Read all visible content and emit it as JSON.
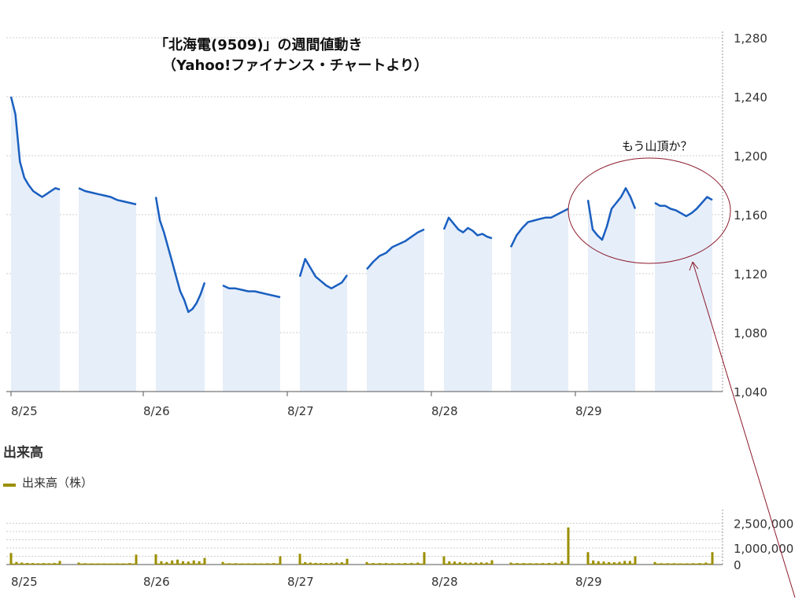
{
  "title_line1": "「北海電(9509)」の週間値動き",
  "title_line2": "（Yahoo!ファイナンス・チャートより）",
  "annotation": "もう山頂か？",
  "volume_heading": "出来高",
  "volume_legend": "出来高（株）",
  "colors": {
    "price_line": "#1a5fc0",
    "price_fill": "#e6eef9",
    "volume": "#9b8f00",
    "grid": "#cccccc",
    "annotation": "#8b1a2b"
  },
  "chart_data": [
    {
      "type": "area",
      "categories": [
        "8/25",
        "8/26",
        "8/27",
        "8/28",
        "8/29"
      ],
      "ylim": [
        1040,
        1280
      ],
      "yticks": [
        "1,040",
        "1,080",
        "1,120",
        "1,160",
        "1,200",
        "1,240",
        "1,280"
      ],
      "segments": [
        {
          "day": "8/25",
          "session": "AM",
          "values": [
            1240,
            1228,
            1196,
            1185,
            1180,
            1176,
            1174,
            1172,
            1174,
            1176,
            1178,
            1177
          ]
        },
        {
          "day": "8/25",
          "session": "PM",
          "values": [
            1178,
            1176,
            1175,
            1174,
            1173,
            1172,
            1170,
            1169,
            1168,
            1167
          ]
        },
        {
          "day": "8/26",
          "session": "AM",
          "values": [
            1172,
            1156,
            1148,
            1138,
            1128,
            1118,
            1108,
            1102,
            1094,
            1096,
            1100,
            1106,
            1114
          ]
        },
        {
          "day": "8/26",
          "session": "PM",
          "values": [
            1112,
            1110,
            1110,
            1109,
            1108,
            1108,
            1107,
            1106,
            1105,
            1104
          ]
        },
        {
          "day": "8/27",
          "session": "AM",
          "values": [
            1118,
            1130,
            1124,
            1118,
            1115,
            1112,
            1110,
            1112,
            1114,
            1119
          ]
        },
        {
          "day": "8/27",
          "session": "PM",
          "values": [
            1123,
            1128,
            1132,
            1134,
            1138,
            1140,
            1142,
            1145,
            1148,
            1150
          ]
        },
        {
          "day": "8/28",
          "session": "AM",
          "values": [
            1150,
            1158,
            1154,
            1150,
            1148,
            1151,
            1149,
            1146,
            1147,
            1145,
            1144
          ]
        },
        {
          "day": "8/28",
          "session": "PM",
          "values": [
            1138,
            1146,
            1151,
            1155,
            1156,
            1157,
            1158,
            1158,
            1160,
            1162,
            1164
          ]
        },
        {
          "day": "8/29",
          "session": "AM",
          "values": [
            1170,
            1150,
            1146,
            1143,
            1152,
            1164,
            1168,
            1172,
            1178,
            1172,
            1164
          ]
        },
        {
          "day": "8/29",
          "session": "PM",
          "values": [
            1168,
            1166,
            1166,
            1164,
            1163,
            1161,
            1159,
            1161,
            1164,
            1168,
            1172,
            1170
          ]
        }
      ]
    },
    {
      "type": "bar",
      "categories": [
        "8/25",
        "8/26",
        "8/27",
        "8/28",
        "8/29"
      ],
      "ylim": [
        0,
        3000000
      ],
      "yticks": [
        "0",
        "1,000,000",
        "2,500,000"
      ],
      "series": [
        {
          "values": [
            [
              700000,
              160000,
              120000,
              100000,
              90000,
              80000,
              90000,
              80000,
              100000,
              220000
            ],
            [
              120000,
              80000,
              70000,
              70000,
              70000,
              60000,
              70000,
              70000,
              90000,
              600000
            ],
            [
              620000,
              200000,
              150000,
              250000,
              300000,
              200000,
              180000,
              250000,
              200000,
              400000
            ],
            [
              160000,
              80000,
              80000,
              70000,
              70000,
              70000,
              70000,
              80000,
              90000,
              500000
            ],
            [
              650000,
              150000,
              120000,
              100000,
              90000,
              90000,
              100000,
              120000,
              140000,
              350000
            ],
            [
              150000,
              90000,
              90000,
              90000,
              80000,
              80000,
              90000,
              100000,
              120000,
              750000
            ],
            [
              500000,
              200000,
              180000,
              150000,
              120000,
              110000,
              120000,
              130000,
              120000,
              260000
            ],
            [
              120000,
              90000,
              90000,
              80000,
              80000,
              90000,
              100000,
              120000,
              200000,
              2250000
            ],
            [
              750000,
              250000,
              200000,
              180000,
              150000,
              140000,
              160000,
              220000,
              220000,
              500000
            ],
            [
              150000,
              80000,
              80000,
              80000,
              70000,
              70000,
              80000,
              90000,
              120000,
              750000
            ]
          ]
        }
      ]
    }
  ]
}
